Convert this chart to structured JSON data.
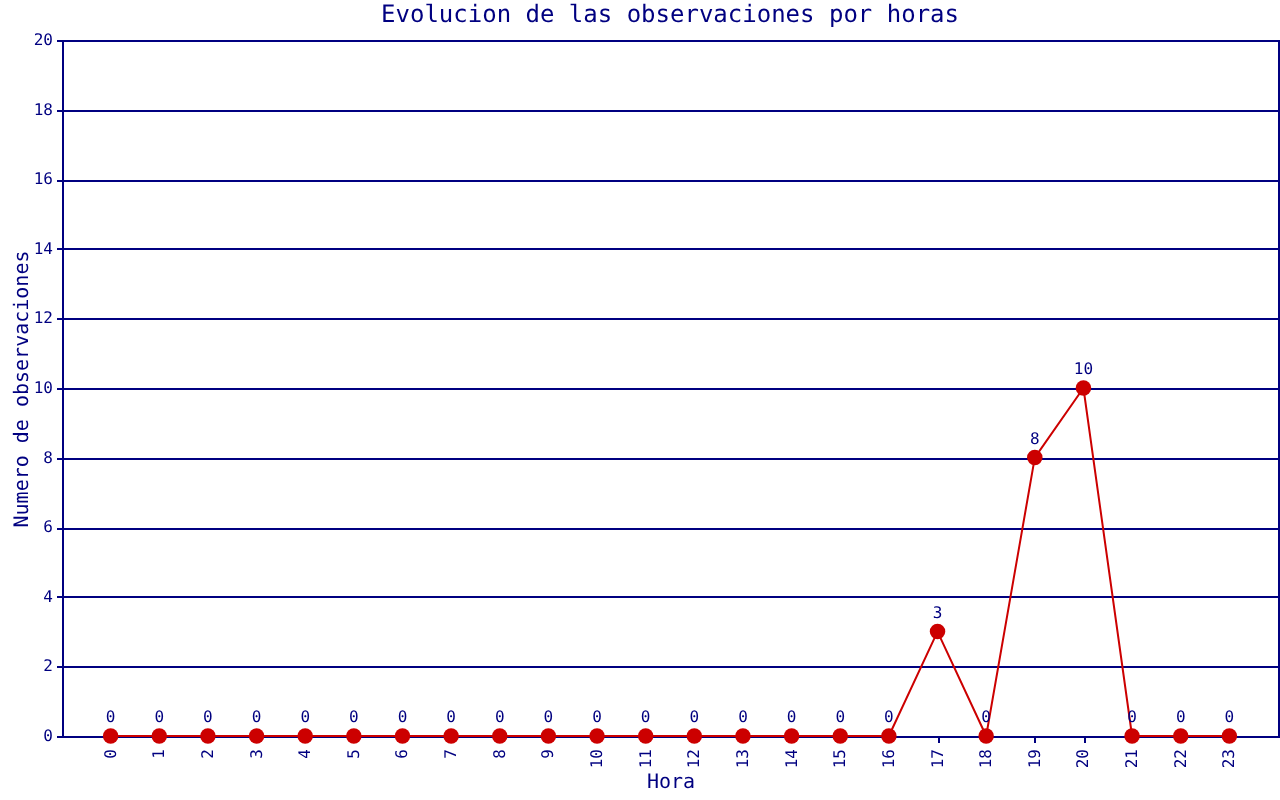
{
  "chart_data": {
    "type": "line",
    "title": "Evolucion de las observaciones por horas",
    "xlabel": "Hora",
    "ylabel": "Numero de observaciones",
    "categories": [
      "0",
      "1",
      "2",
      "3",
      "4",
      "5",
      "6",
      "7",
      "8",
      "9",
      "10",
      "11",
      "12",
      "13",
      "14",
      "15",
      "16",
      "17",
      "18",
      "19",
      "20",
      "21",
      "22",
      "23"
    ],
    "series": [
      {
        "color": "#cc0000",
        "values": [
          0,
          0,
          0,
          0,
          0,
          0,
          0,
          0,
          0,
          0,
          0,
          0,
          0,
          0,
          0,
          0,
          0,
          3,
          0,
          8,
          10,
          0,
          0,
          0
        ]
      }
    ],
    "ylim": [
      0,
      20
    ],
    "yticks": [
      0,
      2,
      4,
      6,
      8,
      10,
      12,
      14,
      16,
      18,
      20
    ],
    "grid": "y",
    "marker": "circle",
    "data_labels": true
  }
}
